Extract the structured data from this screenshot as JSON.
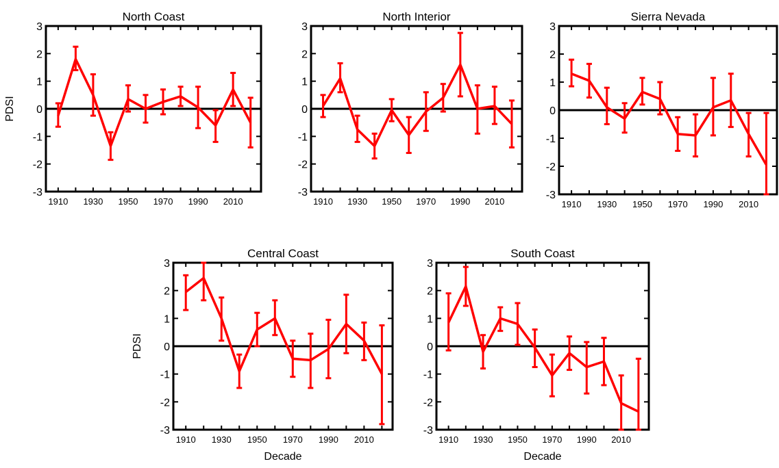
{
  "chart_data": [
    {
      "type": "line",
      "title": "North Coast",
      "xlabel": "",
      "ylabel": "PDSI",
      "x": [
        1910,
        1920,
        1930,
        1940,
        1950,
        1960,
        1970,
        1980,
        1990,
        2000,
        2010,
        2020
      ],
      "xticks": [
        "1910",
        "1930",
        "1950",
        "1970",
        "1990",
        "2010"
      ],
      "yticks": [
        "-3",
        "-2",
        "-1",
        "0",
        "1",
        "2",
        "3"
      ],
      "ylim": [
        -3,
        3
      ],
      "zero_line": true,
      "series": [
        {
          "color": "#ff0000",
          "values": [
            -0.25,
            1.8,
            0.5,
            -1.35,
            0.35,
            0.0,
            0.25,
            0.45,
            0.05,
            -0.6,
            0.7,
            -0.5
          ],
          "err_low": [
            -0.65,
            1.4,
            -0.25,
            -1.85,
            -0.1,
            -0.5,
            -0.2,
            0.1,
            -0.7,
            -1.2,
            0.1,
            -1.4
          ],
          "err_high": [
            0.2,
            2.25,
            1.25,
            -0.85,
            0.85,
            0.5,
            0.7,
            0.8,
            0.8,
            -0.05,
            1.3,
            0.4
          ]
        }
      ]
    },
    {
      "type": "line",
      "title": "North Interior",
      "xlabel": "",
      "ylabel": "",
      "x": [
        1910,
        1920,
        1930,
        1940,
        1950,
        1960,
        1970,
        1980,
        1990,
        2000,
        2010,
        2020
      ],
      "xticks": [
        "1910",
        "1930",
        "1950",
        "1970",
        "1990",
        "2010"
      ],
      "yticks": [
        "-3",
        "-2",
        "-1",
        "0",
        "1",
        "2",
        "3"
      ],
      "ylim": [
        -3,
        3
      ],
      "zero_line": true,
      "series": [
        {
          "color": "#ff0000",
          "values": [
            0.1,
            1.1,
            -0.75,
            -1.35,
            -0.05,
            -0.95,
            -0.1,
            0.4,
            1.6,
            0.0,
            0.1,
            -0.55
          ],
          "err_low": [
            -0.3,
            0.6,
            -1.2,
            -1.8,
            -0.45,
            -1.6,
            -0.8,
            -0.1,
            0.45,
            -0.9,
            -0.55,
            -1.4
          ],
          "err_high": [
            0.5,
            1.65,
            -0.25,
            -0.9,
            0.35,
            -0.3,
            0.6,
            0.9,
            2.75,
            0.85,
            0.8,
            0.3
          ]
        }
      ]
    },
    {
      "type": "line",
      "title": "Sierra Nevada",
      "xlabel": "",
      "ylabel": "",
      "x": [
        1910,
        1920,
        1930,
        1940,
        1950,
        1960,
        1970,
        1980,
        1990,
        2000,
        2010,
        2020
      ],
      "xticks": [
        "1910",
        "1930",
        "1950",
        "1970",
        "1990",
        "2010"
      ],
      "yticks": [
        "-3",
        "-2",
        "-1",
        "0",
        "1",
        "2",
        "3"
      ],
      "ylim": [
        -3,
        3
      ],
      "zero_line": true,
      "series": [
        {
          "color": "#ff0000",
          "values": [
            1.3,
            1.05,
            0.1,
            -0.3,
            0.65,
            0.4,
            -0.85,
            -0.9,
            0.1,
            0.35,
            -0.85,
            -1.95
          ],
          "err_low": [
            0.85,
            0.45,
            -0.5,
            -0.8,
            0.2,
            -0.15,
            -1.45,
            -1.65,
            -0.9,
            -0.6,
            -1.65,
            -3.0
          ],
          "err_high": [
            1.8,
            1.65,
            0.8,
            0.25,
            1.15,
            1.0,
            -0.25,
            -0.15,
            1.15,
            1.3,
            -0.1,
            -0.1
          ]
        }
      ]
    },
    {
      "type": "line",
      "title": "Central Coast",
      "xlabel": "Decade",
      "ylabel": "PDSI",
      "x": [
        1910,
        1920,
        1930,
        1940,
        1950,
        1960,
        1970,
        1980,
        1990,
        2000,
        2010,
        2020
      ],
      "xticks": [
        "1910",
        "1930",
        "1950",
        "1970",
        "1990",
        "2010"
      ],
      "yticks": [
        "-3",
        "-2",
        "-1",
        "0",
        "1",
        "2",
        "3"
      ],
      "ylim": [
        -3,
        3
      ],
      "zero_line": true,
      "series": [
        {
          "color": "#ff0000",
          "values": [
            1.95,
            2.45,
            1.0,
            -0.9,
            0.6,
            1.0,
            -0.45,
            -0.5,
            -0.1,
            0.8,
            0.2,
            -1.0
          ],
          "err_low": [
            1.3,
            1.65,
            0.2,
            -1.5,
            0.0,
            0.4,
            -1.1,
            -1.5,
            -1.15,
            -0.25,
            -0.5,
            -2.8
          ],
          "err_high": [
            2.55,
            3.0,
            1.75,
            -0.3,
            1.2,
            1.65,
            0.2,
            0.45,
            0.95,
            1.85,
            0.85,
            0.75
          ]
        }
      ]
    },
    {
      "type": "line",
      "title": "South Coast",
      "xlabel": "Decade",
      "ylabel": "",
      "x": [
        1910,
        1920,
        1930,
        1940,
        1950,
        1960,
        1970,
        1980,
        1990,
        2000,
        2010,
        2020
      ],
      "xticks": [
        "1910",
        "1930",
        "1950",
        "1970",
        "1990",
        "2010"
      ],
      "yticks": [
        "-3",
        "-2",
        "-1",
        "0",
        "1",
        "2",
        "3"
      ],
      "ylim": [
        -3,
        3
      ],
      "zero_line": true,
      "series": [
        {
          "color": "#ff0000",
          "values": [
            0.85,
            2.15,
            -0.2,
            1.0,
            0.8,
            -0.05,
            -1.05,
            -0.25,
            -0.75,
            -0.55,
            -2.05,
            -2.35
          ],
          "err_low": [
            -0.15,
            1.45,
            -0.8,
            0.55,
            0.05,
            -0.75,
            -1.8,
            -0.85,
            -1.7,
            -1.4,
            -3.0,
            -3.0
          ],
          "err_high": [
            1.9,
            2.85,
            0.4,
            1.4,
            1.55,
            0.6,
            -0.3,
            0.35,
            0.15,
            0.3,
            -1.05,
            -0.45
          ]
        }
      ]
    }
  ]
}
